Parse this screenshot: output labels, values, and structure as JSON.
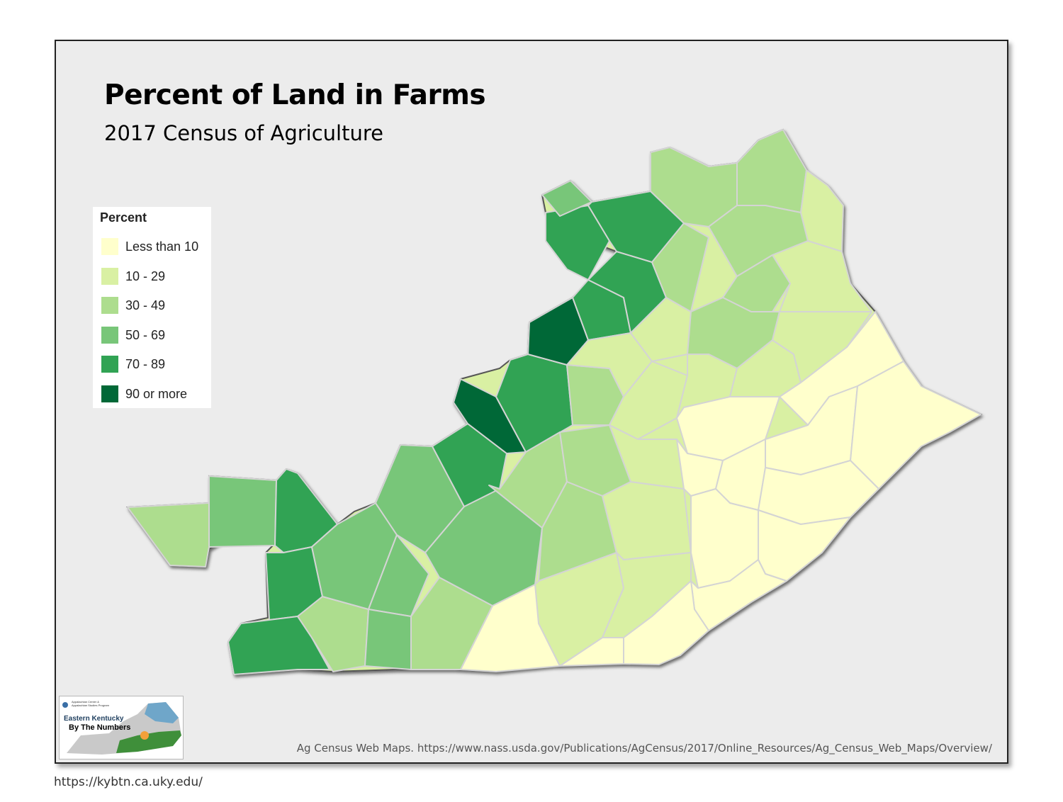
{
  "title": "Percent of Land in Farms",
  "subtitle": "2017 Census of Agriculture",
  "legend": {
    "title": "Percent",
    "items": [
      {
        "label": "Less than 10",
        "color": "#ffffcc"
      },
      {
        "label": "10 - 29",
        "color": "#d9f0a3"
      },
      {
        "label": "30 - 49",
        "color": "#addd8e"
      },
      {
        "label": "50 - 69",
        "color": "#78c679"
      },
      {
        "label": "70 - 89",
        "color": "#31a354"
      },
      {
        "label": "90 or more",
        "color": "#006837"
      }
    ]
  },
  "logo": {
    "line1": "Eastern Kentucky",
    "line2": "By The Numbers",
    "small_text": "Appalachian Center & Appalachian Studies Program"
  },
  "source": "Ag Census Web Maps. https://www.nass.usda.gov/Publications/AgCensus/2017/Online_Resources/Ag_Census_Web_Maps/Overview/",
  "footer_url": "https://kybtn.ca.uky.edu/",
  "colors": {
    "background": "#ececec",
    "frame_border": "#222222",
    "county_border": "#d4d4d4"
  }
}
